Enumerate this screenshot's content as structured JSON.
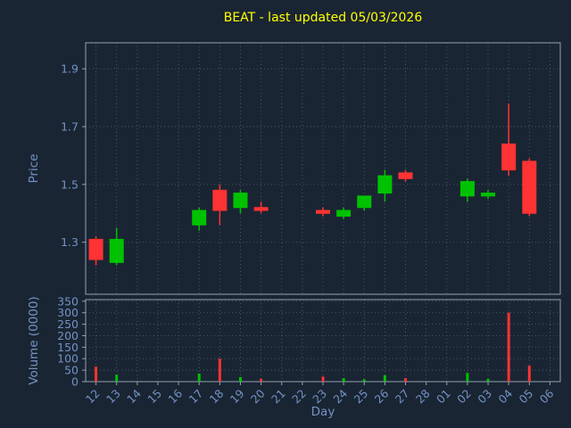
{
  "chart_data": {
    "type": "candlestick+volume",
    "title": "BEAT - last updated 05/03/2026",
    "xlabel": "Day",
    "price_ylabel": "Price",
    "volume_ylabel": "Volume (0000)",
    "categories": [
      "12",
      "13",
      "14",
      "15",
      "16",
      "17",
      "18",
      "19",
      "20",
      "21",
      "22",
      "23",
      "24",
      "25",
      "26",
      "27",
      "28",
      "01",
      "02",
      "03",
      "04",
      "05",
      "06"
    ],
    "price_ticks": [
      1.3,
      1.5,
      1.7,
      1.9
    ],
    "price_range": [
      1.12,
      1.99
    ],
    "volume_ticks": [
      0,
      50,
      100,
      150,
      200,
      250,
      300,
      350
    ],
    "volume_range": [
      0,
      357
    ],
    "grid": "dotted",
    "legend": "none",
    "ohlc": [
      {
        "day": "12",
        "open": 1.31,
        "high": 1.32,
        "low": 1.22,
        "close": 1.24
      },
      {
        "day": "13",
        "open": 1.23,
        "high": 1.35,
        "low": 1.22,
        "close": 1.31
      },
      null,
      null,
      null,
      {
        "day": "17",
        "open": 1.36,
        "high": 1.42,
        "low": 1.34,
        "close": 1.41
      },
      {
        "day": "18",
        "open": 1.48,
        "high": 1.5,
        "low": 1.36,
        "close": 1.41
      },
      {
        "day": "19",
        "open": 1.42,
        "high": 1.48,
        "low": 1.4,
        "close": 1.47
      },
      {
        "day": "20",
        "open": 1.42,
        "high": 1.44,
        "low": 1.4,
        "close": 1.41
      },
      null,
      null,
      {
        "day": "23",
        "open": 1.41,
        "high": 1.42,
        "low": 1.39,
        "close": 1.4
      },
      {
        "day": "24",
        "open": 1.39,
        "high": 1.42,
        "low": 1.38,
        "close": 1.41
      },
      {
        "day": "25",
        "open": 1.42,
        "high": 1.46,
        "low": 1.41,
        "close": 1.46
      },
      {
        "day": "26",
        "open": 1.47,
        "high": 1.55,
        "low": 1.44,
        "close": 1.53
      },
      {
        "day": "27",
        "open": 1.54,
        "high": 1.55,
        "low": 1.51,
        "close": 1.52
      },
      null,
      null,
      {
        "day": "02",
        "open": 1.46,
        "high": 1.52,
        "low": 1.44,
        "close": 1.51
      },
      {
        "day": "03",
        "open": 1.46,
        "high": 1.48,
        "low": 1.45,
        "close": 1.47
      },
      {
        "day": "04",
        "open": 1.64,
        "high": 1.78,
        "low": 1.53,
        "close": 1.55
      },
      {
        "day": "05",
        "open": 1.58,
        "high": 1.59,
        "low": 1.39,
        "close": 1.4
      },
      null
    ],
    "volumes": [
      65,
      30,
      null,
      null,
      null,
      35,
      100,
      20,
      12,
      null,
      null,
      22,
      15,
      10,
      28,
      15,
      null,
      null,
      38,
      12,
      300,
      70,
      null
    ],
    "colors": {
      "background": "#1a2533",
      "title": "#ffff00",
      "axis_text": "#7292c4",
      "grid": "#4d5a6b",
      "spine": "#93a1b3",
      "up": "#00c200",
      "down": "#ff3333"
    }
  }
}
